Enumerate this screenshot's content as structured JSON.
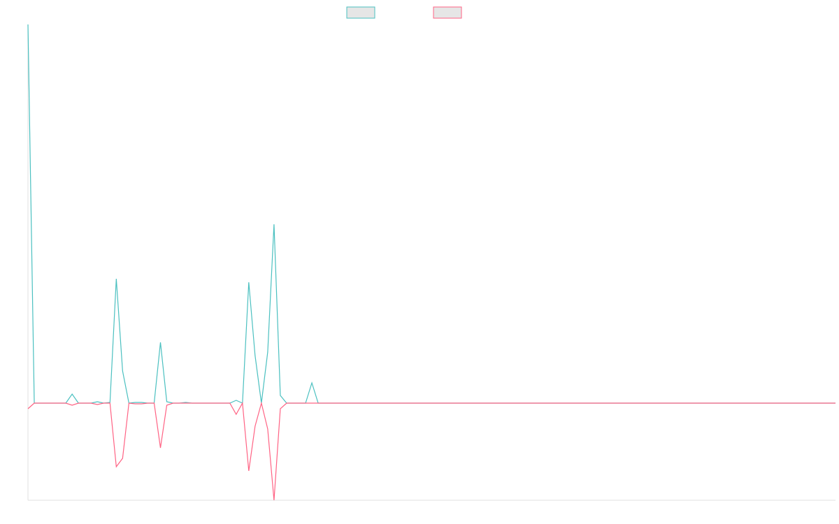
{
  "chart_data": {
    "type": "line",
    "x": [
      0,
      1,
      2,
      3,
      4,
      5,
      6,
      7,
      8,
      9,
      10,
      11,
      12,
      13,
      14,
      15,
      16,
      17,
      18,
      19,
      20,
      21,
      22,
      23,
      24,
      25,
      26,
      27,
      28,
      29,
      30,
      31,
      32,
      33,
      34,
      35,
      36,
      37,
      38,
      39,
      40,
      41,
      42,
      43,
      44,
      45,
      46,
      47,
      48,
      49,
      50,
      51,
      52,
      53,
      54,
      55,
      56,
      57,
      58,
      59,
      60,
      61,
      62,
      63,
      64,
      65,
      66,
      67,
      68,
      69,
      70,
      71,
      72,
      73,
      74,
      75,
      76,
      77,
      78,
      79,
      80,
      81,
      82,
      83,
      84,
      85,
      86,
      87,
      88,
      89,
      90,
      91,
      92,
      93,
      94,
      95,
      96,
      97,
      98,
      99,
      100,
      101,
      102,
      103,
      104,
      105,
      106,
      107,
      108,
      109,
      110,
      111,
      112,
      113,
      114,
      115,
      116,
      117,
      118,
      119,
      120,
      121,
      122,
      123,
      124,
      125,
      126,
      127,
      128
    ],
    "xlim": [
      0,
      128
    ],
    "ylim": [
      -139,
      542
    ],
    "grid": false,
    "series": [
      {
        "color": "#4bc0c0",
        "values": [
          542,
          0,
          0,
          0,
          0,
          0,
          0,
          13,
          0,
          0,
          0,
          2,
          0,
          1,
          178,
          46,
          0,
          1,
          1,
          0,
          0,
          87,
          2,
          0,
          0,
          1,
          0,
          0,
          0,
          0,
          0,
          0,
          0,
          4,
          0,
          173,
          68,
          0,
          73,
          256,
          11,
          0,
          0,
          0,
          0,
          29,
          0,
          0,
          0,
          0,
          0,
          0,
          0,
          0,
          0,
          0,
          0,
          0,
          0,
          0,
          0,
          0,
          0,
          0,
          0,
          0,
          0,
          0,
          0,
          0,
          0,
          0,
          0,
          0,
          0,
          0,
          0,
          0,
          0,
          0,
          0,
          0,
          0,
          0,
          0,
          0,
          0,
          0,
          0,
          0,
          0,
          0,
          0,
          0,
          0,
          0,
          0,
          0,
          0,
          0,
          0,
          0,
          0,
          0,
          0,
          0,
          0,
          0,
          0,
          0,
          0,
          0,
          0,
          0,
          0,
          0,
          0,
          0,
          0,
          0,
          0,
          0,
          0,
          0,
          0,
          0,
          0,
          0,
          0
        ]
      },
      {
        "color": "#ff6384",
        "values": [
          -8,
          0,
          0,
          0,
          0,
          0,
          0,
          -3,
          0,
          0,
          0,
          -2,
          0,
          0,
          -91,
          -79,
          0,
          -1,
          -1,
          0,
          0,
          -64,
          -3,
          0,
          0,
          0,
          0,
          0,
          0,
          0,
          0,
          0,
          0,
          -16,
          0,
          -97,
          -33,
          0,
          -37,
          -139,
          -8,
          0,
          0,
          0,
          0,
          0,
          0,
          0,
          0,
          0,
          0,
          0,
          0,
          0,
          0,
          0,
          0,
          0,
          0,
          0,
          0,
          0,
          0,
          0,
          0,
          0,
          0,
          0,
          0,
          0,
          0,
          0,
          0,
          0,
          0,
          0,
          0,
          0,
          0,
          0,
          0,
          0,
          0,
          0,
          0,
          0,
          0,
          0,
          0,
          0,
          0,
          0,
          0,
          0,
          0,
          0,
          0,
          0,
          0,
          0,
          0,
          0,
          0,
          0,
          0,
          0,
          0,
          0,
          0,
          0,
          0,
          0,
          0,
          0,
          0,
          0,
          0,
          0,
          0,
          0,
          0,
          0,
          0,
          0,
          0,
          0,
          0,
          0,
          0
        ]
      }
    ]
  }
}
